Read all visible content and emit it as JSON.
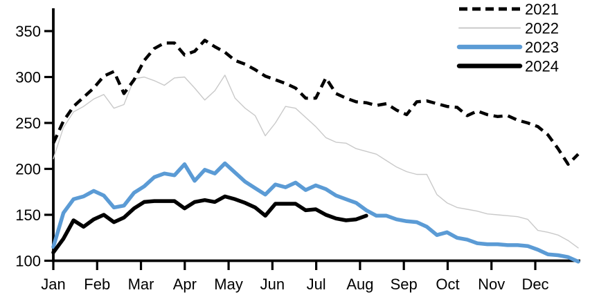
{
  "chart_data": {
    "type": "line",
    "title": "",
    "x_unit": "week of year",
    "x_axis": {
      "tick_labels": [
        "Jan",
        "Feb",
        "Mar",
        "Apr",
        "May",
        "Jun",
        "Jul",
        "Aug",
        "Sep",
        "Oct",
        "Nov",
        "Dec"
      ],
      "grid": false
    },
    "y_axis": {
      "min": 100,
      "max": 350,
      "tick_step": 50,
      "tick_labels": [
        "100",
        "150",
        "200",
        "250",
        "300",
        "350"
      ],
      "grid": false
    },
    "legend": {
      "position": "top-right",
      "entries": [
        "2021",
        "2022",
        "2023",
        "2024"
      ]
    },
    "colors": {
      "series_2021": "#000000",
      "series_2022": "#c9c9c9",
      "series_2023": "#5b9bd5",
      "series_2024": "#000000",
      "axis": "#000000"
    },
    "series": [
      {
        "name": "2022",
        "style": "solid",
        "color": "#c9c9c9",
        "width": 1.4,
        "values": [
          211,
          245,
          262,
          268,
          276,
          281,
          266,
          270,
          298,
          300,
          296,
          291,
          299,
          300,
          288,
          275,
          285,
          302,
          277,
          266,
          258,
          236,
          250,
          268,
          266,
          256,
          246,
          234,
          229,
          228,
          222,
          219,
          216,
          209,
          202,
          197,
          194,
          194,
          172,
          163,
          158,
          156,
          154,
          151,
          150,
          149,
          148,
          145,
          133,
          131,
          128,
          122,
          114
        ]
      },
      {
        "name": "2021",
        "style": "dashed",
        "color": "#000000",
        "width": 4.5,
        "values": [
          228,
          252,
          268,
          278,
          288,
          301,
          306,
          282,
          297,
          318,
          331,
          337,
          337,
          324,
          328,
          340,
          333,
          327,
          318,
          314,
          308,
          301,
          297,
          293,
          288,
          277,
          277,
          299,
          282,
          277,
          273,
          272,
          269,
          271,
          264,
          259,
          273,
          274,
          271,
          268,
          267,
          258,
          263,
          259,
          257,
          258,
          253,
          250,
          246,
          237,
          222,
          205,
          216
        ]
      },
      {
        "name": "2023",
        "style": "solid",
        "color": "#5b9bd5",
        "width": 5.5,
        "values": [
          115,
          152,
          167,
          170,
          176,
          171,
          158,
          160,
          174,
          181,
          191,
          195,
          193,
          205,
          187,
          199,
          195,
          206,
          196,
          186,
          179,
          172,
          183,
          180,
          185,
          177,
          182,
          178,
          171,
          167,
          163,
          155,
          149,
          149,
          145,
          143,
          142,
          137,
          128,
          131,
          125,
          123,
          119,
          118,
          118,
          117,
          117,
          116,
          112,
          107,
          106,
          104,
          99
        ]
      },
      {
        "name": "2024",
        "style": "solid",
        "color": "#000000",
        "width": 5.5,
        "values": [
          109,
          124,
          144,
          137,
          145,
          150,
          142,
          147,
          157,
          164,
          165,
          165,
          165,
          157,
          164,
          166,
          164,
          170,
          167,
          163,
          158,
          149,
          162,
          162,
          162,
          155,
          156,
          150,
          146,
          144,
          145,
          149
        ]
      }
    ]
  }
}
